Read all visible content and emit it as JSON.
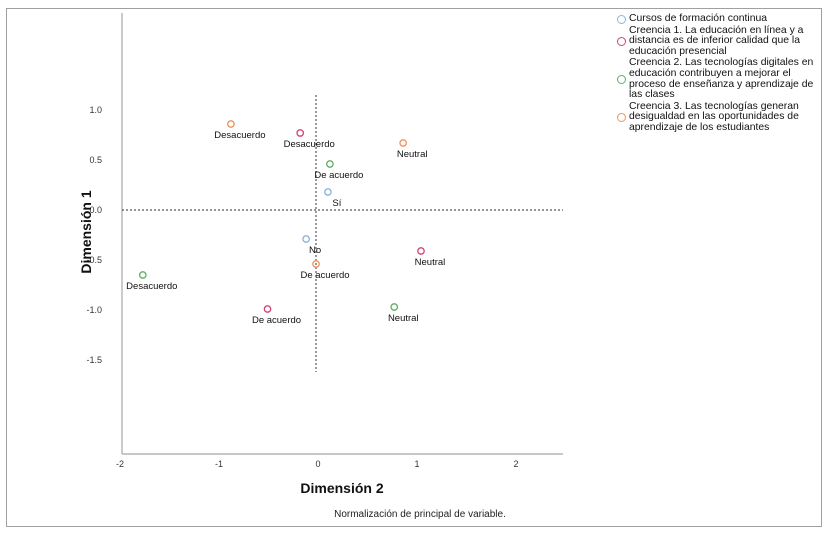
{
  "chart_data": {
    "type": "scatter",
    "title": "",
    "xlabel": "Dimensión 2",
    "ylabel": "Dimensión 1",
    "xlim": [
      -2,
      2.45
    ],
    "ylim": [
      -2.45,
      2.0
    ],
    "xticks": [
      -2,
      -1,
      0,
      1,
      2
    ],
    "xtick_labels": [
      "-2",
      "-1",
      "0",
      "1",
      "2"
    ],
    "yticks": [
      1.0,
      0.5,
      0.0,
      -0.5,
      -1.0,
      -1.5
    ],
    "ytick_labels": [
      "1.0",
      "0.5",
      "0.0",
      "-0.5",
      "-1.0",
      "-1.5"
    ],
    "reference_lines": {
      "x": 0,
      "y": 0,
      "style": "dotted"
    },
    "grid": false,
    "legend_position": "right",
    "footnote": "Normalización de principal de variable.",
    "series": [
      {
        "name": "Cursos de formación continua",
        "color": "#86b4e0",
        "points": [
          {
            "label": "Sí",
            "x": 0.08,
            "y": 0.18
          },
          {
            "label": "No",
            "x": -0.14,
            "y": -0.29
          }
        ]
      },
      {
        "name": "Creencia 1. La educación en línea y a distancia es de inferior calidad que la educación presencial",
        "color": "#d2436e",
        "points": [
          {
            "label": "Desacuerdo",
            "x": -0.2,
            "y": 0.77
          },
          {
            "label": "Neutral",
            "x": 1.02,
            "y": -0.41
          },
          {
            "label": "De acuerdo",
            "x": -0.53,
            "y": -0.99
          }
        ]
      },
      {
        "name": "Creencia 2. Las tecnologías digitales en educación contribuyen a mejorar el proceso de enseñanza y aprendizaje de las clases",
        "color": "#5fae62",
        "points": [
          {
            "label": "De acuerdo",
            "x": 0.1,
            "y": 0.46
          },
          {
            "label": "Neutral",
            "x": 0.75,
            "y": -0.97
          },
          {
            "label": "Desacuerdo",
            "x": -1.79,
            "y": -0.65
          }
        ]
      },
      {
        "name": "Creencia 3. Las tecnologías generan desigualdad en las oportunidades de aprendizaje de los estudiantes",
        "color": "#f0905e",
        "points": [
          {
            "label": "Desacuerdo",
            "x": -0.9,
            "y": 0.86
          },
          {
            "label": "Neutral",
            "x": 0.84,
            "y": 0.67
          },
          {
            "label": "De acuerdo",
            "x": -0.04,
            "y": -0.54
          }
        ]
      }
    ]
  }
}
